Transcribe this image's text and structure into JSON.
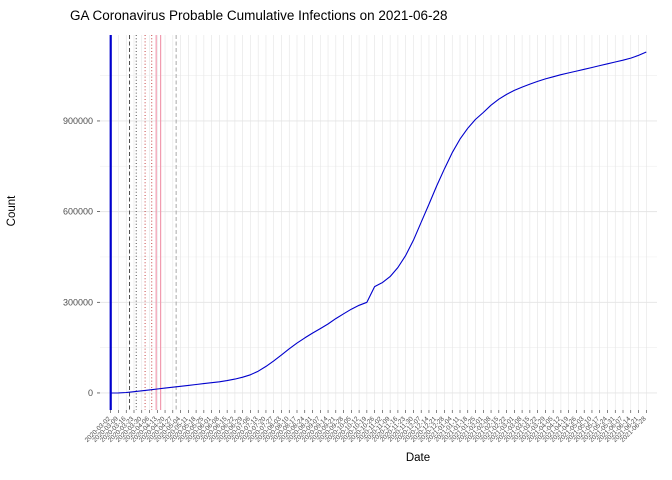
{
  "page": {
    "background": "#ffffff"
  },
  "chart_data": {
    "type": "line",
    "title": "GA Coronavirus Probable Cumulative Infections on 2021-06-28",
    "xlabel": "Date",
    "ylabel": "Count",
    "legend": "none",
    "grid": "on",
    "ylim": [
      0,
      1128000
    ],
    "yticks": [
      0,
      300000,
      600000,
      900000
    ],
    "ytick_labels": [
      "0",
      "300000",
      "600000",
      "900000"
    ],
    "y_minor_gridlines": [
      150000,
      450000,
      750000,
      1050000
    ],
    "x_dates": [
      "2020-03-02",
      "2020-03-09",
      "2020-03-16",
      "2020-03-23",
      "2020-03-30",
      "2020-04-06",
      "2020-04-13",
      "2020-04-20",
      "2020-04-27",
      "2020-05-04",
      "2020-05-11",
      "2020-05-18",
      "2020-05-25",
      "2020-06-01",
      "2020-06-08",
      "2020-06-15",
      "2020-06-22",
      "2020-06-29",
      "2020-07-06",
      "2020-07-13",
      "2020-07-20",
      "2020-07-27",
      "2020-08-03",
      "2020-08-10",
      "2020-08-17",
      "2020-08-24",
      "2020-08-31",
      "2020-09-07",
      "2020-09-14",
      "2020-09-21",
      "2020-09-28",
      "2020-10-05",
      "2020-10-12",
      "2020-10-19",
      "2020-10-26",
      "2020-11-02",
      "2020-11-09",
      "2020-11-16",
      "2020-11-23",
      "2020-11-30",
      "2020-12-07",
      "2020-12-14",
      "2020-12-21",
      "2020-12-28",
      "2021-01-04",
      "2021-01-11",
      "2021-01-18",
      "2021-01-25",
      "2021-02-01",
      "2021-02-08",
      "2021-02-15",
      "2021-02-22",
      "2021-03-01",
      "2021-03-08",
      "2021-03-15",
      "2021-03-22",
      "2021-03-29",
      "2021-04-05",
      "2021-04-12",
      "2021-04-19",
      "2021-04-26",
      "2021-05-03",
      "2021-05-10",
      "2021-05-17",
      "2021-05-24",
      "2021-05-31",
      "2021-06-07",
      "2021-06-14",
      "2021-06-21",
      "2021-06-28"
    ],
    "series": [
      {
        "name": "probable-cumulative-infections",
        "color": "#0000cd",
        "values": [
          0,
          300,
          1500,
          4000,
          7000,
          10000,
          13000,
          16000,
          19000,
          22000,
          25000,
          28000,
          31000,
          34000,
          37000,
          41000,
          46000,
          52000,
          60000,
          72000,
          88000,
          106000,
          126000,
          146000,
          165000,
          182000,
          198000,
          213000,
          228000,
          246000,
          262000,
          277000,
          290000,
          300000,
          352000,
          365000,
          385000,
          415000,
          455000,
          505000,
          565000,
          625000,
          685000,
          742000,
          795000,
          840000,
          876000,
          905000,
          928000,
          952000,
          972000,
          988000,
          1001000,
          1012000,
          1022000,
          1031000,
          1039000,
          1046000,
          1053000,
          1059000,
          1065000,
          1071000,
          1077000,
          1083000,
          1089000,
          1095000,
          1101000,
          1108000,
          1117000,
          1128000
        ]
      }
    ],
    "vlines": [
      {
        "date": "2020-03-02",
        "color": "#0000cd",
        "style": "solid",
        "width": 2.2
      },
      {
        "date": "2020-03-19",
        "color": "#3a3a3a",
        "style": "dashed",
        "width": 0.9
      },
      {
        "date": "2020-03-25",
        "color": "#3a3a3a",
        "style": "dotted",
        "width": 0.9
      },
      {
        "date": "2020-04-02",
        "color": "#c03030",
        "style": "dotted",
        "width": 0.9
      },
      {
        "date": "2020-04-08",
        "color": "#c03030",
        "style": "dotted",
        "width": 0.9
      },
      {
        "date": "2020-04-12",
        "color": "#f19bb0",
        "style": "solid",
        "width": 1.2
      },
      {
        "date": "2020-04-16",
        "color": "#f19bb0",
        "style": "solid",
        "width": 1.2
      },
      {
        "date": "2020-04-30",
        "color": "#a0a0a0",
        "style": "dashed",
        "width": 0.9
      }
    ]
  },
  "colors": {
    "grid_major": "#e4e4e4",
    "grid_minor": "#f1f1f1",
    "tick_label": "#4d4d4d",
    "tick_mark": "#333333"
  }
}
